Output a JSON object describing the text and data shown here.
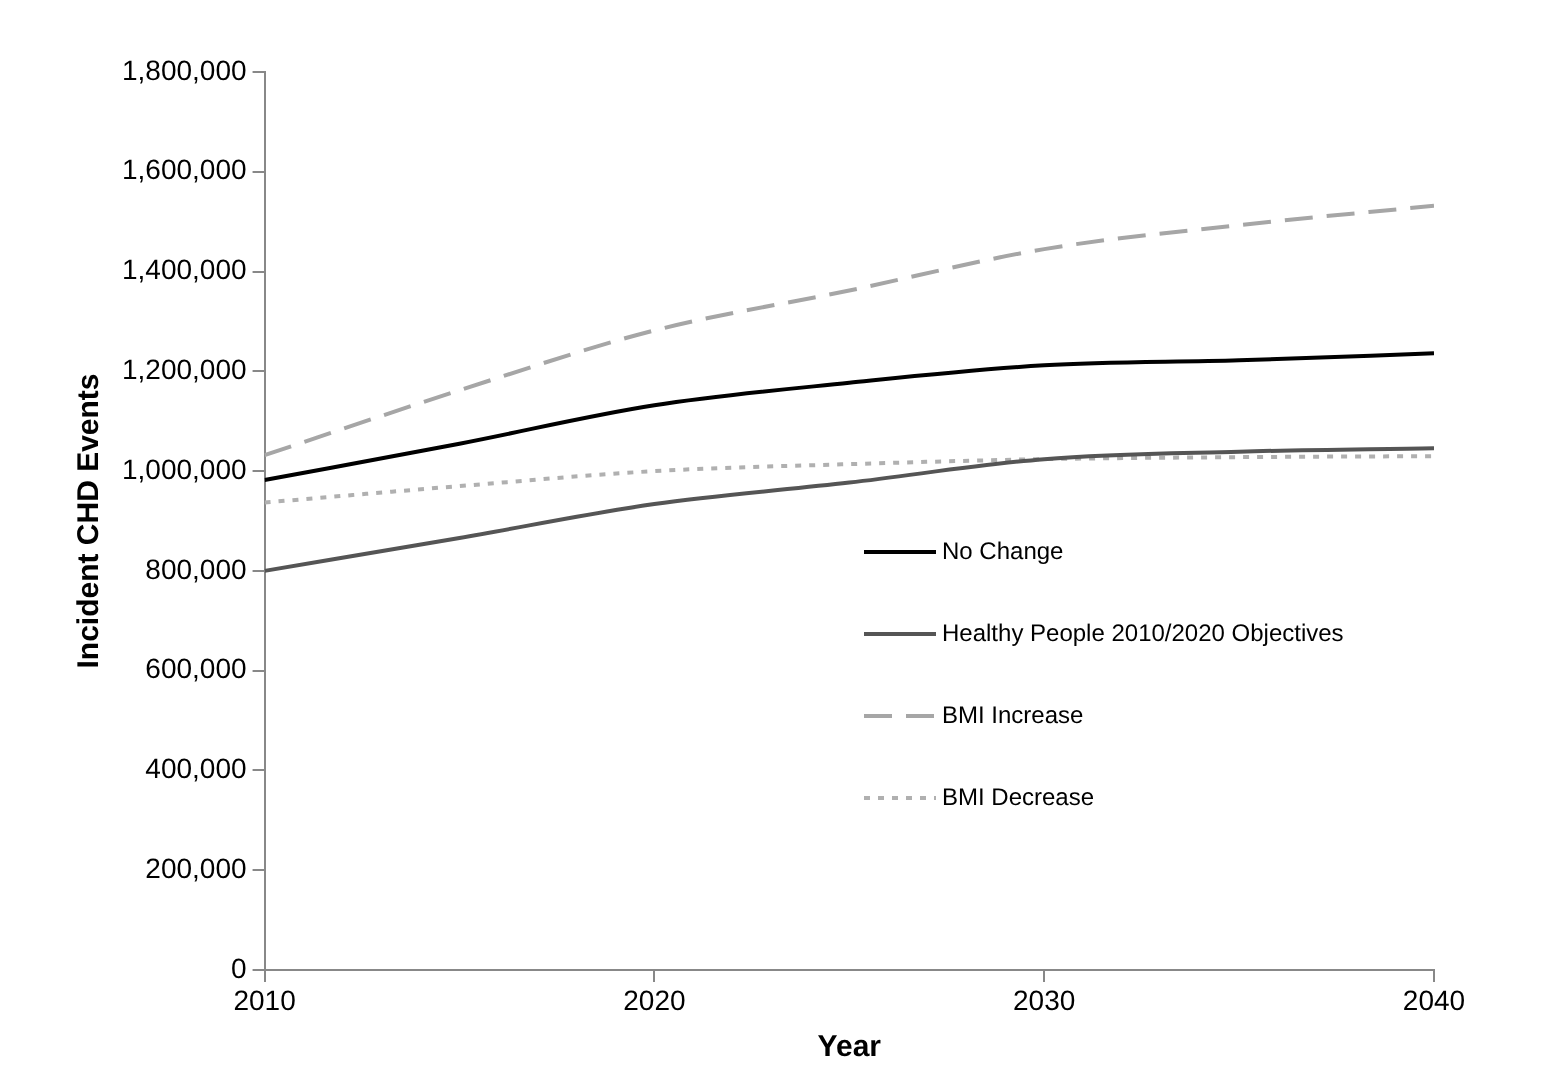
{
  "chart_data": {
    "type": "line",
    "xlabel": "Year",
    "ylabel": "Incident CHD Events",
    "x": [
      2010,
      2015,
      2020,
      2025,
      2030,
      2035,
      2040
    ],
    "xlim": [
      2010,
      2040
    ],
    "xticks": [
      2010,
      2020,
      2030,
      2040
    ],
    "ylim": [
      0,
      1800000
    ],
    "yticks": [
      0,
      {
        "value": 200000,
        "label": "200,000"
      },
      {
        "value": 400000,
        "label": "400,000"
      },
      {
        "value": 600000,
        "label": "600,000"
      },
      {
        "value": 800000,
        "label": "800,000"
      },
      {
        "value": 1000000,
        "label": "1,000,000"
      },
      {
        "value": 1200000,
        "label": "1,200,000"
      },
      {
        "value": 1400000,
        "label": "1,400,000"
      },
      {
        "value": 1600000,
        "label": "1,600,000"
      },
      {
        "value": 1800000,
        "label": "1,800,000"
      }
    ],
    "grid": false,
    "legend": "bottom right",
    "marker": "none",
    "series": [
      {
        "name": "No Change",
        "color": "#000000",
        "line_style": "solid",
        "values": [
          982000,
          1055000,
          1132000,
          1177000,
          1212000,
          1222000,
          1236000
        ]
      },
      {
        "name": "Healthy People 2010/2020 Objectives",
        "color": "#555555",
        "line_style": "solid",
        "values": [
          800000,
          866000,
          934000,
          977000,
          1024000,
          1039000,
          1046000
        ]
      },
      {
        "name": "BMI Increase",
        "color": "#a6a6a6",
        "line_style": "dashed",
        "values": [
          1032000,
          1162000,
          1282000,
          1362000,
          1445000,
          1493000,
          1532000
        ]
      },
      {
        "name": "BMI Decrease",
        "color": "#b0b0b0",
        "line_style": "dotted",
        "values": [
          937000,
          970000,
          1000000,
          1014000,
          1024000,
          1028000,
          1030000
        ]
      }
    ]
  }
}
